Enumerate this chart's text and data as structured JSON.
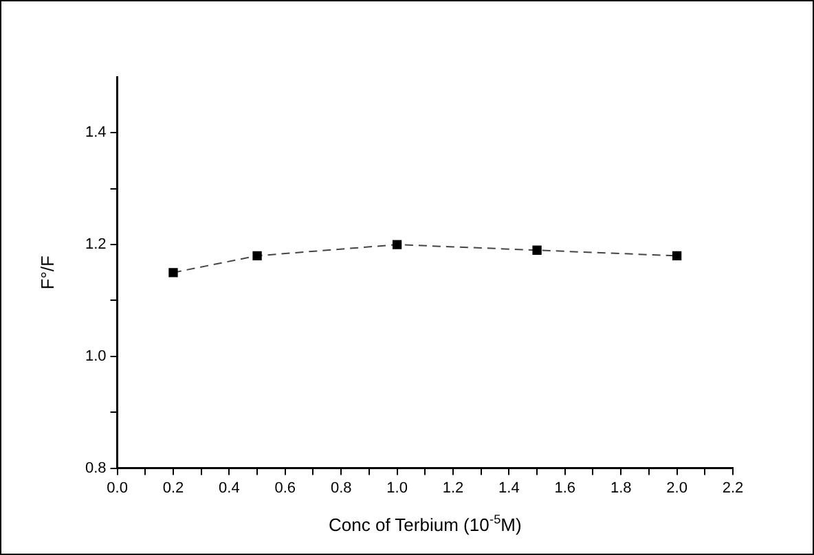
{
  "chart_data": {
    "type": "line",
    "xlabel": "Conc of Terbium (10$^{-5}$M)",
    "ylabel": "F°/F",
    "x": [
      0.2,
      0.5,
      1.0,
      1.5,
      2.0
    ],
    "series": [
      {
        "color": "#000000",
        "values": [
          1.15,
          1.18,
          1.2,
          1.19,
          1.18
        ]
      }
    ],
    "xlim": [
      0,
      2.2
    ],
    "xticks": [
      {
        "value": 0,
        "label": "0.0"
      },
      {
        "value": 0.1,
        "label": null
      },
      {
        "value": 0.2,
        "label": "0.2"
      },
      {
        "value": 0.3,
        "label": null
      },
      {
        "value": 0.4,
        "label": "0.4"
      },
      {
        "value": 0.5,
        "label": null
      },
      {
        "value": 0.6,
        "label": "0.6"
      },
      {
        "value": 0.7,
        "label": null
      },
      {
        "value": 0.8,
        "label": "0.8"
      },
      {
        "value": 0.9,
        "label": null
      },
      {
        "value": 1.0,
        "label": "1.0"
      },
      {
        "value": 1.1,
        "label": null
      },
      {
        "value": 1.2,
        "label": "1.2"
      },
      {
        "value": 1.3,
        "label": null
      },
      {
        "value": 1.4,
        "label": "1.4"
      },
      {
        "value": 1.5,
        "label": null
      },
      {
        "value": 1.6,
        "label": "1.6"
      },
      {
        "value": 1.7,
        "label": null
      },
      {
        "value": 1.8,
        "label": "1.8"
      },
      {
        "value": 1.9,
        "label": null
      },
      {
        "value": 2.0,
        "label": "2.0"
      },
      {
        "value": 2.1,
        "label": null
      },
      {
        "value": 2.2,
        "label": "2.2"
      }
    ],
    "ylim": [
      0.8,
      1.5
    ],
    "yticks": [
      {
        "value": 0.8,
        "label": "0.8"
      },
      {
        "value": 0.9,
        "label": null
      },
      {
        "value": 1.0,
        "label": "1.0"
      },
      {
        "value": 1.1,
        "label": null
      },
      {
        "value": 1.2,
        "label": "1.2"
      },
      {
        "value": 1.3,
        "label": null
      },
      {
        "value": 1.4,
        "label": "1.4"
      }
    ],
    "grid": false,
    "legend": false,
    "marker": "square",
    "line_style": "dashed"
  }
}
